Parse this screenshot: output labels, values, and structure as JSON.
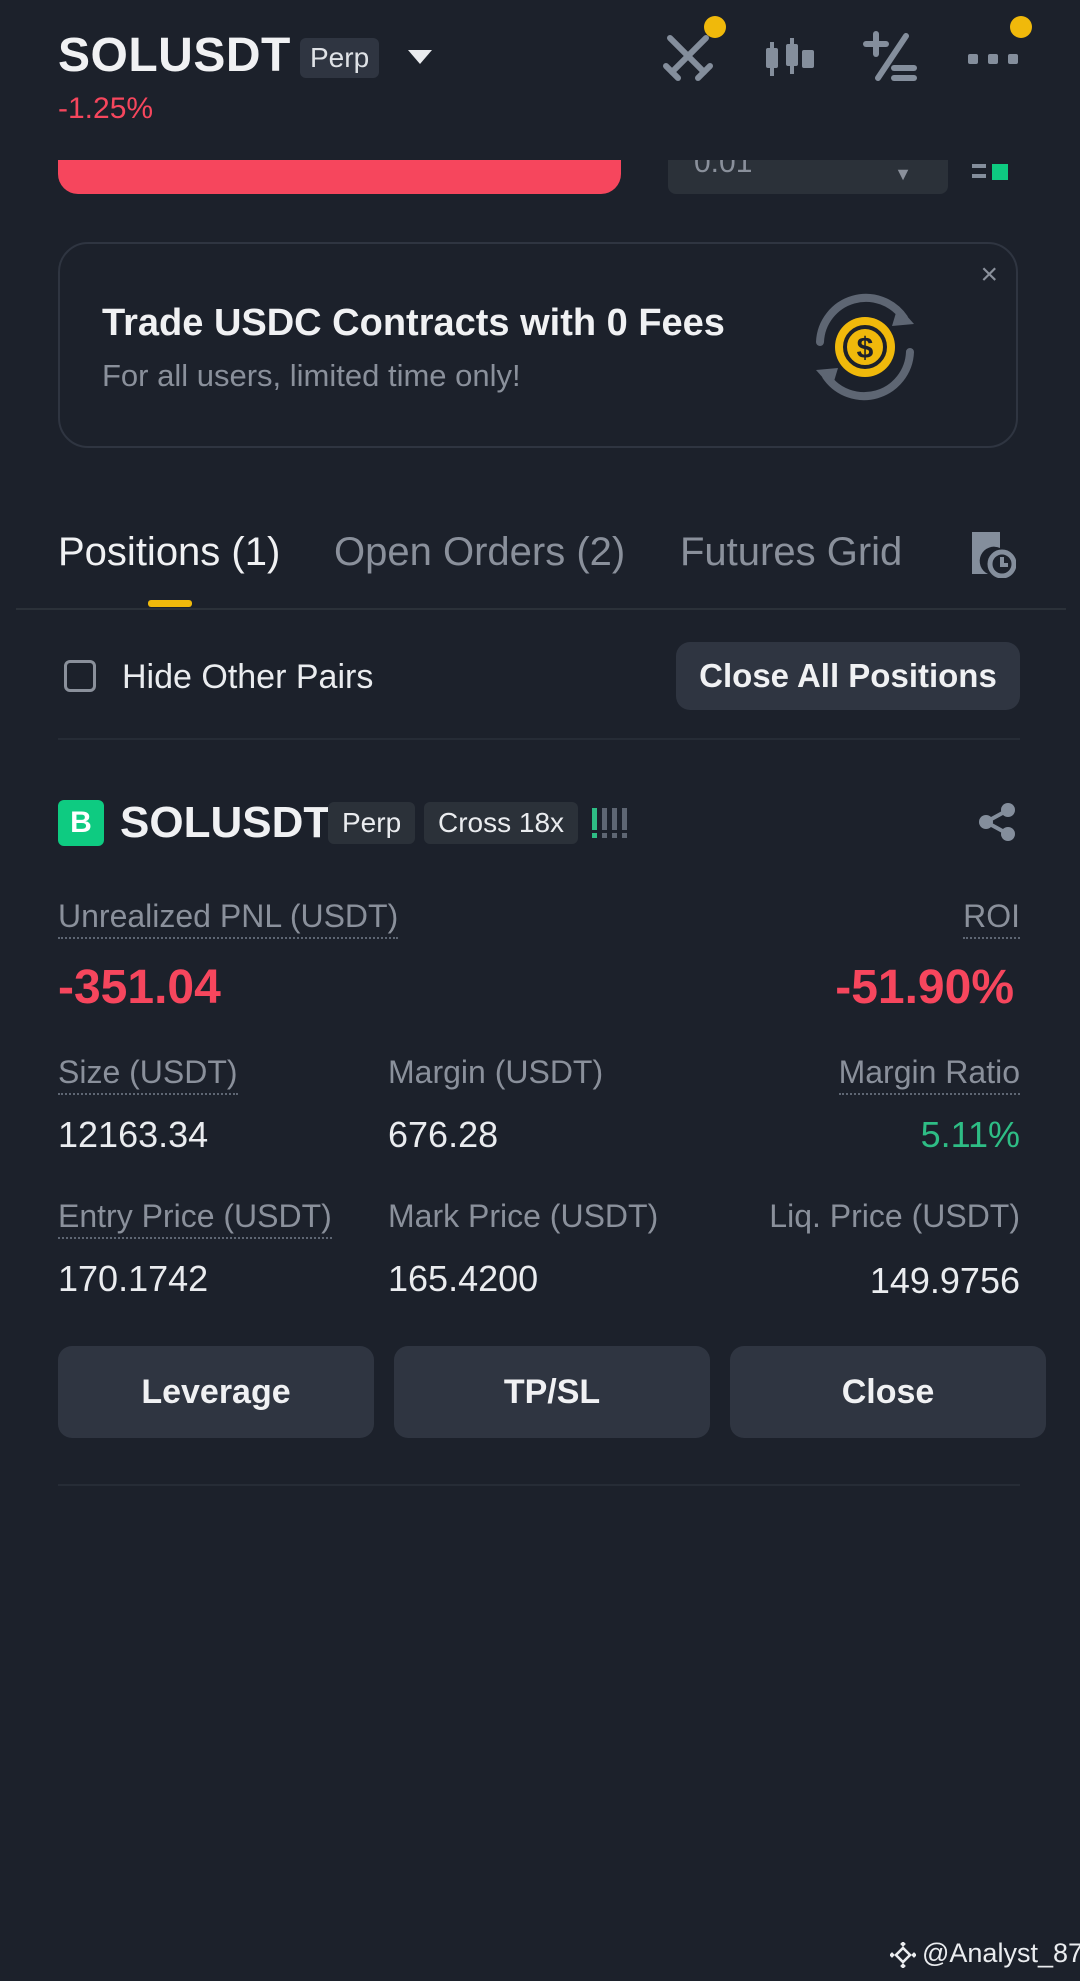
{
  "header": {
    "symbol": "SOLUSDT",
    "contract_type": "Perp",
    "change_pct": "-1.25%"
  },
  "order_form": {
    "quantity_value": "0.01"
  },
  "promo": {
    "title": "Trade USDC Contracts with 0 Fees",
    "subtitle": "For all users, limited time only!",
    "close_label": "×"
  },
  "tabs": [
    {
      "label": "Positions (1)",
      "active": true
    },
    {
      "label": "Open Orders (2)",
      "active": false
    },
    {
      "label": "Futures Grid",
      "active": false
    }
  ],
  "filter": {
    "hide_other_pairs_label": "Hide Other Pairs",
    "hide_other_pairs_checked": false,
    "close_all_label": "Close All Positions"
  },
  "position": {
    "side_badge": "B",
    "symbol": "SOLUSDT",
    "contract_type": "Perp",
    "margin_mode": "Cross 18x",
    "unrealized_pnl_label": "Unrealized PNL (USDT)",
    "unrealized_pnl": "-351.04",
    "roi_label": "ROI",
    "roi": "-51.90%",
    "size_label": "Size (USDT)",
    "size": "12163.34",
    "margin_label": "Margin (USDT)",
    "margin": "676.28",
    "margin_ratio_label": "Margin Ratio",
    "margin_ratio": "5.11%",
    "entry_price_label": "Entry Price (USDT)",
    "entry_price": "170.1742",
    "mark_price_label": "Mark Price (USDT)",
    "mark_price": "165.4200",
    "liq_price_label": "Liq. Price (USDT)",
    "liq_price": "149.9756",
    "buttons": {
      "leverage": "Leverage",
      "tpsl": "TP/SL",
      "close": "Close"
    }
  },
  "watermark": "@Analyst_87",
  "colors": {
    "background": "#1c212b",
    "accent": "#f0b90b",
    "sell_red": "#f6465d",
    "buy_green": "#0ecb81",
    "profit_green": "#2ebd85"
  }
}
